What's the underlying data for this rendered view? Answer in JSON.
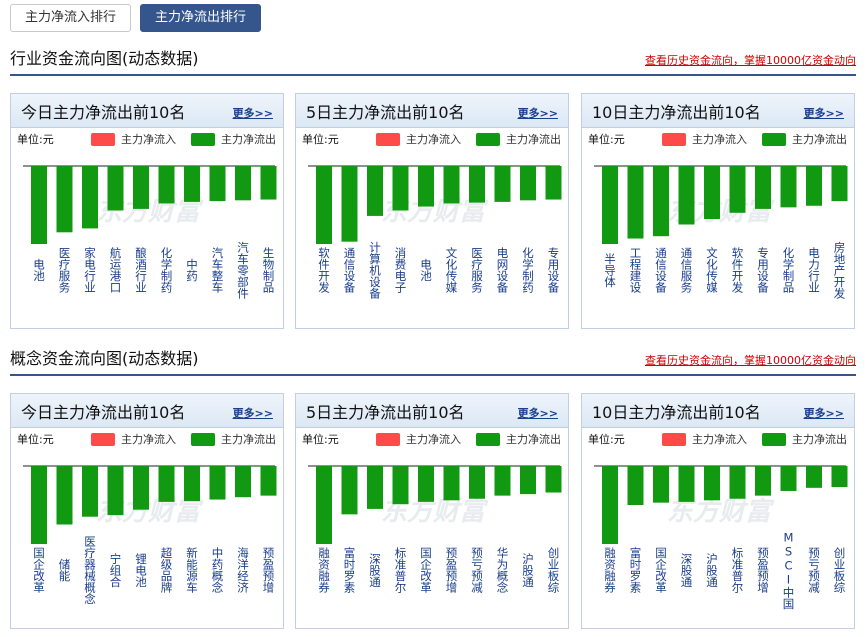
{
  "tabs": [
    {
      "label": "主力净流入排行",
      "active": false
    },
    {
      "label": "主力净流出排行",
      "active": true
    }
  ],
  "colors": {
    "inflow": "#ff4a4a",
    "outflow": "#119911",
    "accent": "#34568c"
  },
  "watermark": "东方财富",
  "sections": [
    {
      "title": "行业资金流向图(动态数据)",
      "link": "查看历史资金流向，掌握10000亿资金动向",
      "panels": [
        {
          "title": "今日主力净流出前10名",
          "more": "更多>>",
          "unit": "单位:元",
          "legend_in": "主力净流入",
          "legend_out": "主力净流出",
          "chart_data": {
            "type": "bar",
            "categories": [
              "电池",
              "医疗服务",
              "家电行业",
              "航运港口",
              "酿酒行业",
              "化学制药",
              "中药",
              "汽车整车",
              "汽车零部件",
              "生物制品"
            ],
            "values": [
              -10,
              -8.5,
              -8,
              -5.7,
              -5.5,
              -4.8,
              -4.6,
              -4.5,
              -4.4,
              -4.3
            ]
          }
        },
        {
          "title": "5日主力净流出前10名",
          "more": "更多>>",
          "unit": "单位:元",
          "legend_in": "主力净流入",
          "legend_out": "主力净流出",
          "chart_data": {
            "type": "bar",
            "categories": [
              "软件开发",
              "通信设备",
              "计算机设备",
              "消费电子",
              "电池",
              "文化传媒",
              "医疗服务",
              "电网设备",
              "化学制药",
              "专用设备"
            ],
            "values": [
              -10,
              -9.7,
              -6.4,
              -5.7,
              -5.2,
              -4.8,
              -4.7,
              -4.6,
              -4.4,
              -4.3
            ]
          }
        },
        {
          "title": "10日主力净流出前10名",
          "more": "更多>>",
          "unit": "单位:元",
          "legend_in": "主力净流入",
          "legend_out": "主力净流出",
          "chart_data": {
            "type": "bar",
            "categories": [
              "半导体",
              "工程建设",
              "通信设备",
              "通信服务",
              "文化传媒",
              "软件开发",
              "专用设备",
              "化学制品",
              "电力行业",
              "房地产开发"
            ],
            "values": [
              -10,
              -9.3,
              -9,
              -7.5,
              -6.8,
              -6,
              -5.5,
              -5.3,
              -5.1,
              -4.5
            ]
          }
        }
      ]
    },
    {
      "title": "概念资金流向图(动态数据)",
      "link": "查看历史资金流向，掌握10000亿资金动向",
      "panels": [
        {
          "title": "今日主力净流出前10名",
          "more": "更多>>",
          "unit": "单位:元",
          "legend_in": "主力净流入",
          "legend_out": "主力净流出",
          "chart_data": {
            "type": "bar",
            "categories": [
              "国企改革",
              "储能",
              "医疗器械概念",
              "宁组合",
              "锂电池",
              "超级品牌",
              "新能源车",
              "中药概念",
              "海洋经济",
              "预盈预增"
            ],
            "values": [
              -10,
              -7.5,
              -6.5,
              -6.3,
              -5.6,
              -4.6,
              -4.5,
              -4.3,
              -4.0,
              -3.8
            ]
          }
        },
        {
          "title": "5日主力净流出前10名",
          "more": "更多>>",
          "unit": "单位:元",
          "legend_in": "主力净流入",
          "legend_out": "主力净流出",
          "chart_data": {
            "type": "bar",
            "categories": [
              "融资融券",
              "富时罗素",
              "深股通",
              "标准普尔",
              "国企改革",
              "预盈预增",
              "预亏预减",
              "华为概念",
              "沪股通",
              "创业板综"
            ],
            "values": [
              -10,
              -6.2,
              -5.5,
              -4.9,
              -4.6,
              -4.4,
              -4.2,
              -3.8,
              -3.6,
              -3.4
            ]
          }
        },
        {
          "title": "10日主力净流出前10名",
          "more": "更多>>",
          "unit": "单位:元",
          "legend_in": "主力净流入",
          "legend_out": "主力净流出",
          "chart_data": {
            "type": "bar",
            "categories": [
              "融资融券",
              "富时罗素",
              "国企改革",
              "深股通",
              "沪股通",
              "标准普尔",
              "预盈预增",
              "MSCI中国",
              "预亏预减",
              "创业板综"
            ],
            "values": [
              -10,
              -5.0,
              -4.7,
              -4.6,
              -4.4,
              -4.2,
              -3.8,
              -3.2,
              -2.8,
              -2.7
            ]
          }
        }
      ]
    }
  ]
}
